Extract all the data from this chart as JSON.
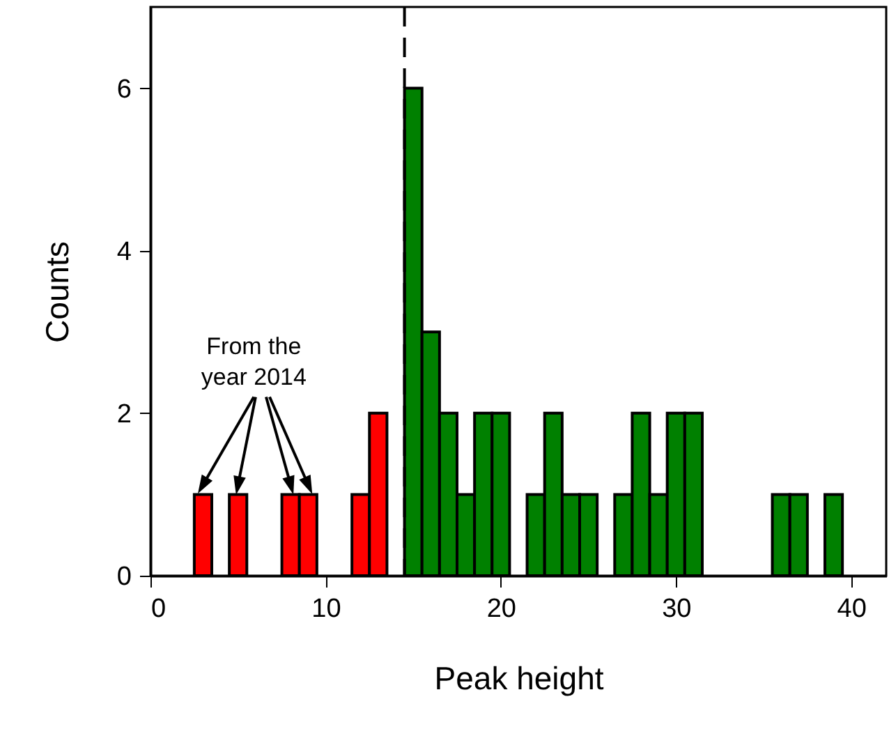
{
  "chart_data": {
    "type": "histogram",
    "xlabel": "Peak height",
    "ylabel": "Counts",
    "bins": [
      2.5,
      3.5,
      4.5,
      5.5,
      6.5,
      7.5,
      8.5,
      9.5,
      10.5,
      11.5,
      12.5,
      13.5,
      14.5,
      15.5,
      16.5,
      17.5,
      18.5,
      19.5,
      20.5,
      21.5,
      22.5,
      23.5,
      24.5,
      25.5,
      26.5,
      27.5,
      28.5,
      29.5,
      30.5,
      31.5,
      32.5,
      33.5,
      34.5,
      35.5,
      36.5,
      37.5,
      38.5,
      39.5
    ],
    "values": [
      1,
      0,
      1,
      0,
      0,
      1,
      1,
      0,
      0,
      1,
      2,
      0,
      6,
      3,
      2,
      1,
      2,
      2,
      0,
      1,
      2,
      1,
      1,
      0,
      1,
      2,
      1,
      2,
      2,
      0,
      0,
      0,
      0,
      1,
      1,
      0,
      1
    ],
    "colors": [
      "#ff0000",
      "#ff0000",
      "#ff0000",
      "#ff0000",
      "#ff0000",
      "#ff0000",
      "#ff0000",
      "#ff0000",
      "#ff0000",
      "#ff0000",
      "#ff0000",
      "#ff0000",
      "#008000",
      "#008000",
      "#008000",
      "#008000",
      "#008000",
      "#008000",
      "#008000",
      "#008000",
      "#008000",
      "#008000",
      "#008000",
      "#008000",
      "#008000",
      "#008000",
      "#008000",
      "#008000",
      "#008000",
      "#008000",
      "#008000",
      "#008000",
      "#008000",
      "#008000",
      "#008000",
      "#008000",
      "#008000"
    ],
    "xlim": [
      0,
      42
    ],
    "xticks": [
      0,
      10,
      20,
      30,
      40
    ],
    "ylim": [
      0,
      7
    ],
    "yticks": [
      0,
      2,
      4,
      6
    ],
    "ref_lines": [
      {
        "axis": "x",
        "value": 14.5,
        "color": "#000000",
        "line_style": "dashed"
      }
    ],
    "grid": false,
    "annotations": [
      {
        "text": "From the\nyear 2014",
        "x": 3,
        "y": 1
      }
    ]
  }
}
